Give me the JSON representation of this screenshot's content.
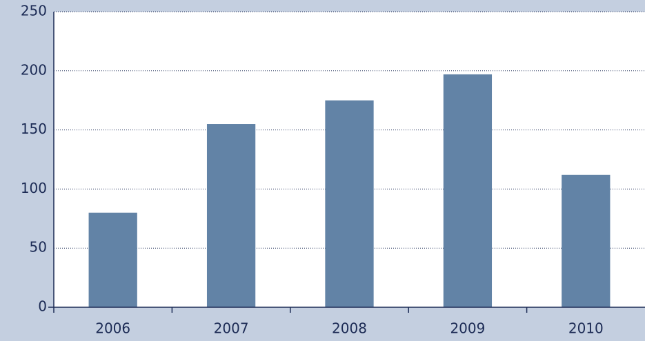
{
  "chart_data": {
    "type": "bar",
    "categories": [
      "2006",
      "2007",
      "2008",
      "2009",
      "2010"
    ],
    "values": [
      80,
      155,
      175,
      197,
      112
    ],
    "color": "#6283a6",
    "ylim": [
      0,
      250
    ],
    "yticks": [
      0,
      50,
      100,
      150,
      200,
      250
    ],
    "grid": true
  }
}
